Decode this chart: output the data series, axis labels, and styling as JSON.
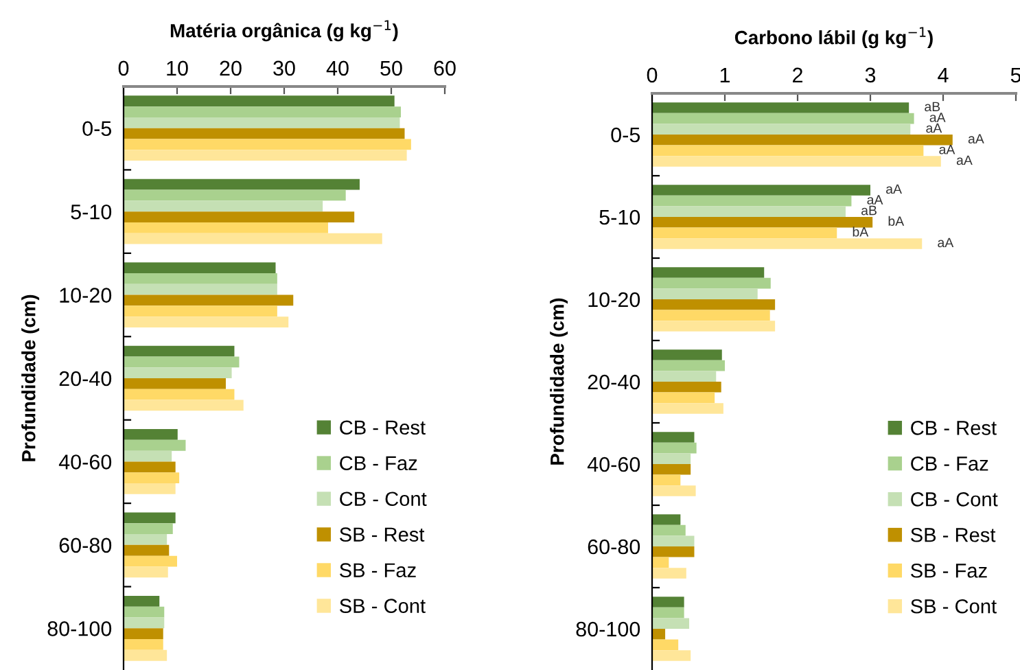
{
  "chart_data": [
    {
      "type": "bar",
      "orientation": "horizontal",
      "title": "Matéria orgânica (g kg$^{−1}$)",
      "ylabel": "Profundidade (cm)",
      "categories": [
        "0-5",
        "5-10",
        "10-20",
        "20-40",
        "40-60",
        "60-80",
        "80-100"
      ],
      "xlim": [
        0,
        60
      ],
      "xticks": [
        0,
        10,
        20,
        30,
        40,
        50,
        60
      ],
      "legend": "bottom right",
      "grid": false,
      "series": [
        {
          "name": "CB - Rest",
          "color": "#548235",
          "values": [
            50.6,
            44.1,
            28.4,
            20.7,
            10.1,
            9.7,
            6.7
          ]
        },
        {
          "name": "CB - Faz",
          "color": "#a9d18e",
          "values": [
            51.8,
            41.5,
            28.7,
            21.6,
            11.6,
            9.2,
            7.6
          ]
        },
        {
          "name": "CB - Cont",
          "color": "#c5e0b4",
          "values": [
            51.6,
            37.2,
            28.7,
            20.2,
            9.0,
            8.1,
            7.6
          ]
        },
        {
          "name": "SB - Rest",
          "color": "#bf9000",
          "values": [
            52.5,
            43.1,
            31.7,
            19.1,
            9.7,
            8.5,
            7.4
          ]
        },
        {
          "name": "SB - Faz",
          "color": "#ffd966",
          "values": [
            53.7,
            38.2,
            28.7,
            20.7,
            10.4,
            10.0,
            7.4
          ]
        },
        {
          "name": "SB - Cont",
          "color": "#ffe699",
          "values": [
            52.9,
            48.3,
            30.8,
            22.4,
            9.7,
            8.3,
            8.1
          ]
        }
      ]
    },
    {
      "type": "bar",
      "orientation": "horizontal",
      "title": "Carbono lábil (g kg$^{−1}$)",
      "ylabel": "Profundidade (cm)",
      "categories": [
        "0-5",
        "5-10",
        "10-20",
        "20-40",
        "40-60",
        "60-80",
        "80-100"
      ],
      "xlim": [
        0,
        5
      ],
      "xticks": [
        0,
        1,
        2,
        3,
        4,
        5
      ],
      "legend": "bottom right",
      "grid": false,
      "series": [
        {
          "name": "CB - Rest",
          "color": "#548235",
          "values": [
            3.53,
            3.0,
            1.54,
            0.96,
            0.58,
            0.39,
            0.44
          ],
          "value_labels": [
            "aB",
            "aA",
            null,
            null,
            null,
            null,
            null
          ]
        },
        {
          "name": "CB - Faz",
          "color": "#a9d18e",
          "values": [
            3.6,
            2.74,
            1.63,
            1.0,
            0.61,
            0.46,
            0.44
          ],
          "value_labels": [
            "aA",
            "aA",
            null,
            null,
            null,
            null,
            null
          ]
        },
        {
          "name": "CB - Cont",
          "color": "#c5e0b4",
          "values": [
            3.55,
            2.66,
            1.45,
            0.88,
            0.53,
            0.58,
            0.51
          ],
          "value_labels": [
            "aA",
            "aB",
            null,
            null,
            null,
            null,
            null
          ]
        },
        {
          "name": "SB - Rest",
          "color": "#bf9000",
          "values": [
            4.13,
            3.03,
            1.69,
            0.95,
            0.53,
            0.58,
            0.18
          ],
          "value_labels": [
            "aA",
            "bA",
            null,
            null,
            null,
            null,
            null
          ]
        },
        {
          "name": "SB - Faz",
          "color": "#ffd966",
          "values": [
            3.73,
            2.54,
            1.62,
            0.86,
            0.39,
            0.23,
            0.36
          ],
          "value_labels": [
            "aA",
            "bA",
            null,
            null,
            null,
            null,
            null
          ]
        },
        {
          "name": "SB - Cont",
          "color": "#ffe699",
          "values": [
            3.97,
            3.71,
            1.69,
            0.98,
            0.6,
            0.47,
            0.53
          ],
          "value_labels": [
            "aA",
            "aA",
            null,
            null,
            null,
            null,
            null
          ]
        }
      ]
    }
  ]
}
